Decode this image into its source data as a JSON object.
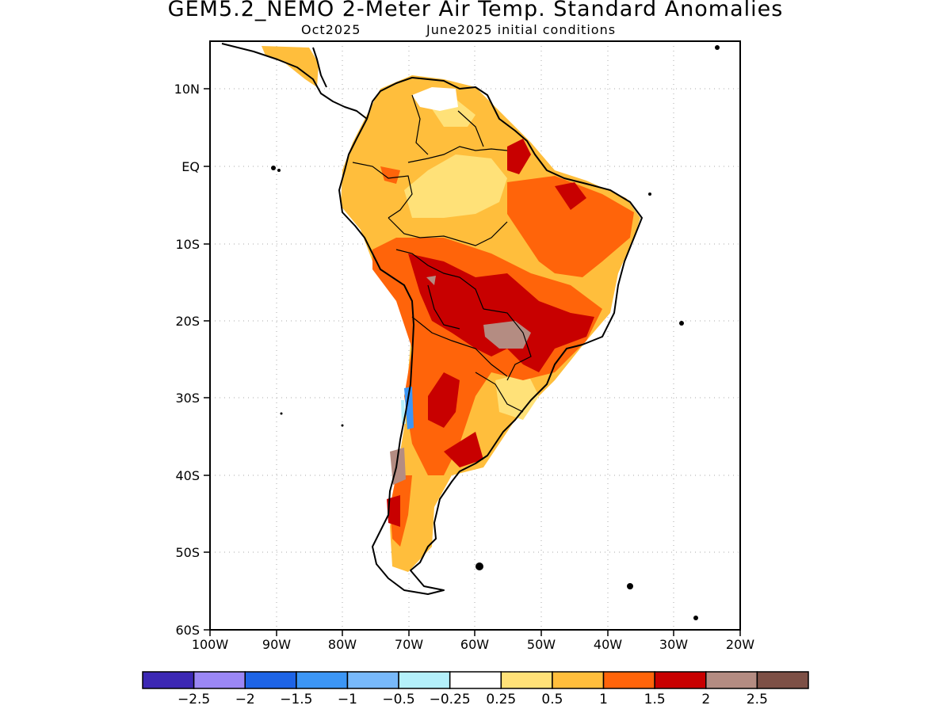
{
  "title": "GEM5.2_NEMO 2-Meter Air Temp. Standard Anomalies",
  "subtitle_left": "Oct2025",
  "subtitle_right": "June2025 initial conditions",
  "lat_labels": [
    "10N",
    "EQ",
    "10S",
    "20S",
    "30S",
    "40S",
    "50S",
    "60S"
  ],
  "lon_labels": [
    "100W",
    "90W",
    "80W",
    "70W",
    "60W",
    "50W",
    "40W",
    "30W",
    "20W"
  ],
  "map_extent": {
    "lon": [
      -100,
      -20
    ],
    "lat": [
      -60,
      15.5
    ]
  },
  "legend": {
    "colors": [
      "#3c28b4",
      "#9b87f5",
      "#1e64e6",
      "#3c96f5",
      "#78b9fa",
      "#b4f0fa",
      "#ffffff",
      "#ffe178",
      "#ffbe3c",
      "#ff640a",
      "#c80000",
      "#b48c82",
      "#7d5046"
    ],
    "labels": [
      "-2.5",
      "-2",
      "-1.5",
      "-1",
      "-0.5",
      "-0.25",
      "0.25",
      "0.5",
      "1",
      "1.5",
      "2",
      "2.5"
    ]
  },
  "colors": {
    "land_light": "#ffbe3c",
    "land_yellow": "#ffe178",
    "land_orange": "#ff640a",
    "land_red": "#c80000",
    "land_brown": "#b48c82",
    "land_blue": "#3c96f5"
  }
}
